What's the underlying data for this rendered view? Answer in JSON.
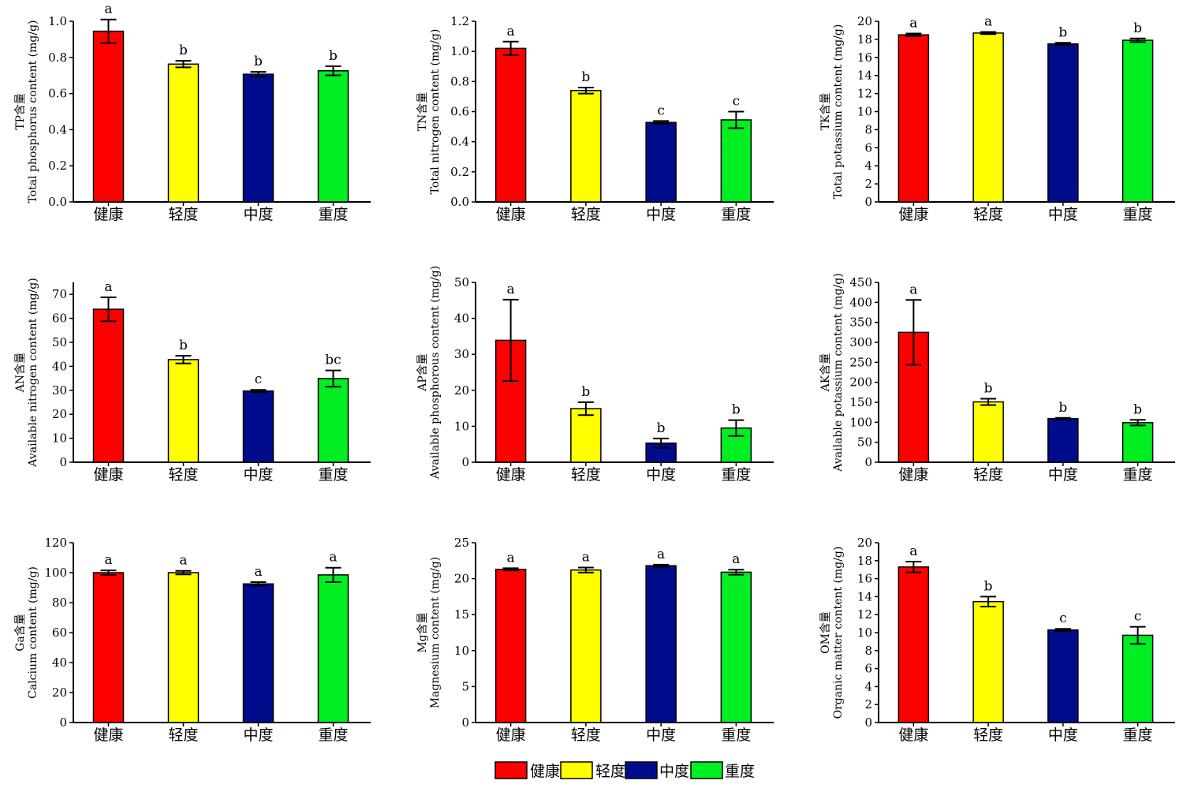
{
  "legend": {
    "items": [
      {
        "label": "健康",
        "color": "#ff0000"
      },
      {
        "label": "轻度",
        "color": "#ffff00"
      },
      {
        "label": "中度",
        "color": "#000c8c"
      },
      {
        "label": "重度",
        "color": "#00ee22"
      }
    ]
  },
  "chart_data": [
    {
      "type": "bar",
      "categories": [
        "健康",
        "轻度",
        "中度",
        "重度"
      ],
      "values": [
        0.945,
        0.763,
        0.707,
        0.726
      ],
      "errors": [
        0.065,
        0.018,
        0.013,
        0.025
      ],
      "significance": [
        "a",
        "b",
        "b",
        "b"
      ],
      "ylabel_line1": "TP含量",
      "ylabel_line2": "Total phosphorus content (mg/g)",
      "ylim": [
        0,
        1.0
      ],
      "yticks": [
        "0.0",
        "0.2",
        "0.4",
        "0.6",
        "0.8",
        "1.0"
      ],
      "colors": [
        "#ff0000",
        "#ffff00",
        "#000c8c",
        "#00ee22"
      ]
    },
    {
      "type": "bar",
      "categories": [
        "健康",
        "轻度",
        "中度",
        "重度"
      ],
      "values": [
        1.02,
        0.74,
        0.528,
        0.545
      ],
      "errors": [
        0.045,
        0.02,
        0.01,
        0.055
      ],
      "significance": [
        "a",
        "b",
        "c",
        "c"
      ],
      "ylabel_line1": "TN含量",
      "ylabel_line2": "Total nitrogen content (mg/g)",
      "ylim": [
        0,
        1.2
      ],
      "yticks": [
        "0.0",
        "0.2",
        "0.4",
        "0.6",
        "0.8",
        "1.0",
        "1.2"
      ],
      "colors": [
        "#ff0000",
        "#ffff00",
        "#000c8c",
        "#00ee22"
      ]
    },
    {
      "type": "bar",
      "categories": [
        "健康",
        "轻度",
        "中度",
        "重度"
      ],
      "values": [
        18.5,
        18.7,
        17.5,
        17.9
      ],
      "errors": [
        0.15,
        0.12,
        0.12,
        0.2
      ],
      "significance": [
        "a",
        "a",
        "b",
        "b"
      ],
      "ylabel_line1": "TK含量",
      "ylabel_line2": "Total potassium content (mg/g)",
      "ylim": [
        0,
        20
      ],
      "yticks": [
        "0",
        "2",
        "4",
        "6",
        "8",
        "10",
        "12",
        "14",
        "16",
        "18",
        "20"
      ],
      "colors": [
        "#ff0000",
        "#ffff00",
        "#000c8c",
        "#00ee22"
      ]
    },
    {
      "type": "bar",
      "categories": [
        "健康",
        "轻度",
        "中度",
        "重度"
      ],
      "values": [
        63.8,
        42.8,
        29.7,
        34.9
      ],
      "errors": [
        5.0,
        1.6,
        0.5,
        3.4
      ],
      "significance": [
        "a",
        "b",
        "c",
        "bc"
      ],
      "ylabel_line1": "AN含量",
      "ylabel_line2": "Available nitrogen content (mg/g)",
      "ylim": [
        0,
        75
      ],
      "yticks": [
        "0",
        "10",
        "20",
        "30",
        "40",
        "50",
        "60",
        "70"
      ],
      "colors": [
        "#ff0000",
        "#ffff00",
        "#000c8c",
        "#00ee22"
      ]
    },
    {
      "type": "bar",
      "categories": [
        "健康",
        "轻度",
        "中度",
        "重度"
      ],
      "values": [
        33.9,
        14.9,
        5.3,
        9.5
      ],
      "errors": [
        11.3,
        1.8,
        1.3,
        2.2
      ],
      "significance": [
        "a",
        "b",
        "b",
        "b"
      ],
      "ylabel_line1": "AP含量",
      "ylabel_line2": "Available phosphorous content (mg/g)",
      "ylim": [
        0,
        50
      ],
      "yticks": [
        "0",
        "10",
        "20",
        "30",
        "40",
        "50"
      ],
      "colors": [
        "#ff0000",
        "#ffff00",
        "#000c8c",
        "#00ee22"
      ]
    },
    {
      "type": "bar",
      "categories": [
        "健康",
        "轻度",
        "中度",
        "重度"
      ],
      "values": [
        325,
        151,
        109,
        99
      ],
      "errors": [
        81,
        8,
        2,
        7
      ],
      "significance": [
        "a",
        "b",
        "b",
        "b"
      ],
      "ylabel_line1": "AK含量",
      "ylabel_line2": "Available potassium content (mg/g)",
      "ylim": [
        0,
        450
      ],
      "yticks": [
        "0",
        "50",
        "100",
        "150",
        "200",
        "250",
        "300",
        "350",
        "400",
        "450"
      ],
      "colors": [
        "#ff0000",
        "#ffff00",
        "#000c8c",
        "#00ee22"
      ]
    },
    {
      "type": "bar",
      "categories": [
        "健康",
        "轻度",
        "中度",
        "重度"
      ],
      "values": [
        100,
        100,
        92.5,
        98.5
      ],
      "errors": [
        1.5,
        1.2,
        1.2,
        4.8
      ],
      "significance": [
        "a",
        "a",
        "a",
        "a"
      ],
      "ylabel_line1": "Ga含量",
      "ylabel_line2": "Calcium content (mg/g)",
      "ylim": [
        0,
        120
      ],
      "yticks": [
        "0",
        "20",
        "40",
        "60",
        "80",
        "100",
        "120"
      ],
      "colors": [
        "#ff0000",
        "#ffff00",
        "#000c8c",
        "#00ee22"
      ]
    },
    {
      "type": "bar",
      "categories": [
        "健康",
        "轻度",
        "中度",
        "重度"
      ],
      "values": [
        21.3,
        21.2,
        21.8,
        20.9
      ],
      "errors": [
        0.15,
        0.35,
        0.15,
        0.35
      ],
      "significance": [
        "a",
        "a",
        "a",
        "a"
      ],
      "ylabel_line1": "Mg含量",
      "ylabel_line2": "Magnesium content (mg/g)",
      "ylim": [
        0,
        25
      ],
      "yticks": [
        "0",
        "5",
        "10",
        "15",
        "20",
        "25"
      ],
      "colors": [
        "#ff0000",
        "#ffff00",
        "#000c8c",
        "#00ee22"
      ]
    },
    {
      "type": "bar",
      "categories": [
        "健康",
        "轻度",
        "中度",
        "重度"
      ],
      "values": [
        17.3,
        13.45,
        10.3,
        9.7
      ],
      "errors": [
        0.6,
        0.55,
        0.12,
        0.95
      ],
      "significance": [
        "a",
        "b",
        "c",
        "c"
      ],
      "ylabel_line1": "OM含量",
      "ylabel_line2": "Organic matter content (mg/g)",
      "ylim": [
        0,
        20
      ],
      "yticks": [
        "0",
        "2",
        "4",
        "6",
        "8",
        "10",
        "12",
        "14",
        "16",
        "18",
        "20"
      ],
      "colors": [
        "#ff0000",
        "#ffff00",
        "#000c8c",
        "#00ee22"
      ]
    }
  ]
}
